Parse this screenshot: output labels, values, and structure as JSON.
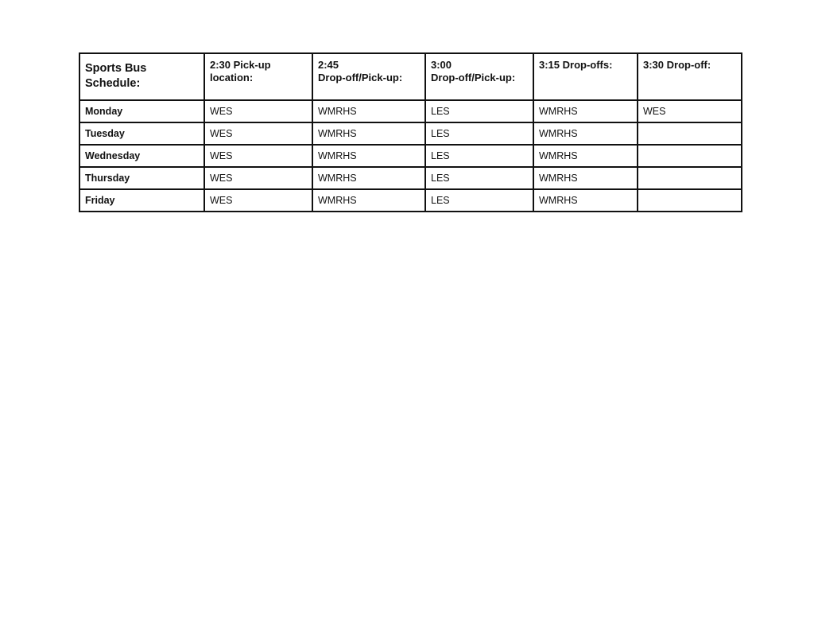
{
  "table": {
    "title_line1": "Sports Bus",
    "title_line2": "Schedule:",
    "headers": [
      {
        "line1": "2:30 Pick-up",
        "line2": "location:"
      },
      {
        "line1": "2:45",
        "line2": "Drop-off/Pick-up:"
      },
      {
        "line1": "3:00",
        "line2": "Drop-off/Pick-up:"
      },
      {
        "line1": "3:15 Drop-offs:",
        "line2": ""
      },
      {
        "line1": "3:30 Drop-off:",
        "line2": ""
      }
    ],
    "rows": [
      {
        "day": "Monday",
        "cells": [
          "WES",
          "WMRHS",
          "LES",
          "WMRHS",
          "WES"
        ]
      },
      {
        "day": "Tuesday",
        "cells": [
          "WES",
          "WMRHS",
          "LES",
          "WMRHS",
          ""
        ]
      },
      {
        "day": "Wednesday",
        "cells": [
          "WES",
          "WMRHS",
          "LES",
          "WMRHS",
          ""
        ]
      },
      {
        "day": "Thursday",
        "cells": [
          "WES",
          "WMRHS",
          "LES",
          "WMRHS",
          ""
        ]
      },
      {
        "day": "Friday",
        "cells": [
          "WES",
          "WMRHS",
          "LES",
          "WMRHS",
          ""
        ]
      }
    ]
  }
}
